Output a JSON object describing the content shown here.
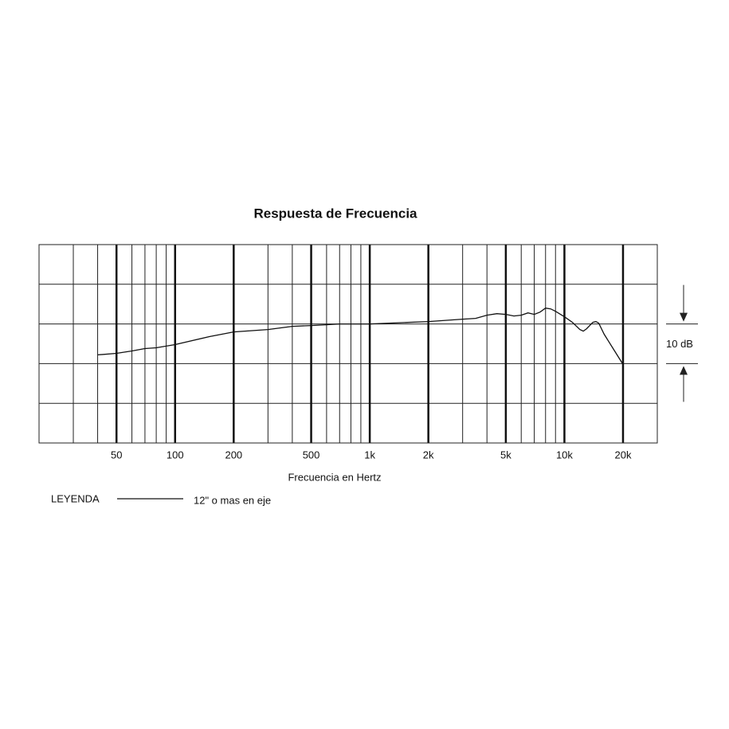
{
  "chart_data": {
    "type": "line",
    "title": "Respuesta de Frecuencia",
    "xlabel": "Frecuencia en Hertz",
    "log_x": true,
    "xlim": [
      20,
      30000
    ],
    "xticks": [
      50,
      100,
      200,
      500,
      {
        "value": 1000,
        "label": "1k"
      },
      {
        "value": 2000,
        "label": "2k"
      },
      {
        "value": 5000,
        "label": "5k"
      },
      {
        "value": 10000,
        "label": "10k"
      },
      {
        "value": 20000,
        "label": "20k"
      }
    ],
    "xminor": [
      30,
      40,
      60,
      70,
      80,
      90,
      300,
      400,
      600,
      700,
      800,
      900,
      3000,
      4000,
      6000,
      7000,
      8000,
      9000
    ],
    "ylim": [
      -30,
      20
    ],
    "yticks": [
      -30,
      -20,
      -10,
      0,
      10,
      20
    ],
    "grid": true,
    "scale_marker": {
      "label": "10 dB",
      "from": 0,
      "to": -10
    },
    "legend_title": "LEYENDA",
    "series": [
      {
        "name": "12\" o mas en eje",
        "color": "#111111",
        "x": [
          40,
          50,
          60,
          70,
          80,
          100,
          150,
          200,
          300,
          400,
          500,
          600,
          700,
          1000,
          2000,
          3000,
          3500,
          4000,
          4500,
          5000,
          5500,
          6000,
          6500,
          7000,
          7500,
          8000,
          8500,
          9000,
          10000,
          11000,
          12000,
          12500,
          13000,
          14000,
          14500,
          15000,
          16000,
          18000,
          20000
        ],
        "values": [
          -7.8,
          -7.4,
          -6.8,
          -6.2,
          -6,
          -5.2,
          -3.2,
          -2,
          -1.4,
          -0.6,
          -0.4,
          -0.2,
          0,
          0,
          0.6,
          1.2,
          1.4,
          2.2,
          2.6,
          2.4,
          2,
          2.2,
          2.8,
          2.4,
          3,
          4,
          3.8,
          3.2,
          1.8,
          0.4,
          -1.4,
          -1.8,
          -1.2,
          0.4,
          0.6,
          0.2,
          -2.6,
          -6.6,
          -10.2
        ]
      }
    ]
  }
}
